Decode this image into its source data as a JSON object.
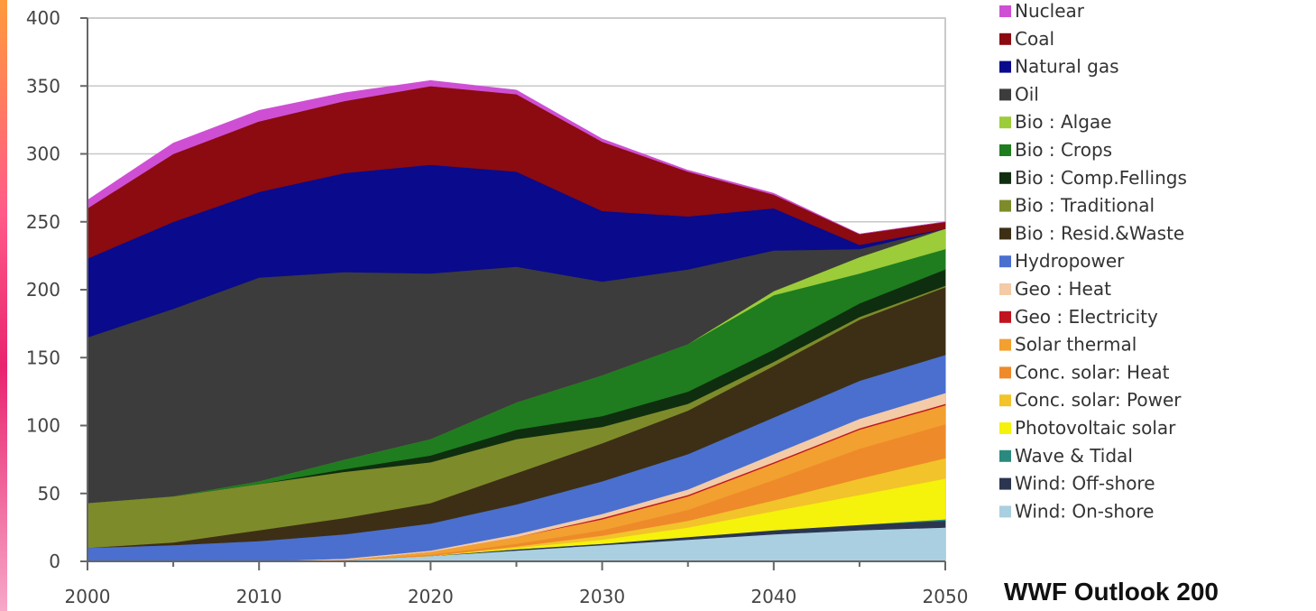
{
  "source_note": "WWF Outlook 200",
  "chart_data": {
    "type": "area",
    "stacked": true,
    "x": [
      2000,
      2005,
      2010,
      2015,
      2020,
      2025,
      2030,
      2035,
      2040,
      2045,
      2050
    ],
    "xlim": [
      2000,
      2050
    ],
    "ylim": [
      0,
      400
    ],
    "x_ticks": [
      "2000",
      "2010",
      "2020",
      "2030",
      "2040",
      "2050"
    ],
    "y_ticks": [
      "0",
      "50",
      "100",
      "150",
      "200",
      "250",
      "300",
      "350",
      "400"
    ],
    "grid": true,
    "legend_position": "right",
    "series": [
      {
        "name": "Wind: On-shore",
        "color": "#a9cfe0",
        "values": [
          0,
          0,
          0,
          1,
          4,
          8,
          12,
          16,
          20,
          23,
          25
        ]
      },
      {
        "name": "Wind: Off-shore",
        "color": "#2b3550",
        "values": [
          0,
          0,
          0,
          0,
          0,
          1,
          1,
          2,
          3,
          4,
          5
        ]
      },
      {
        "name": "Wave & Tidal",
        "color": "#2a8a7e",
        "values": [
          0,
          0,
          0,
          0,
          0,
          0,
          0,
          0,
          0,
          0,
          1
        ]
      },
      {
        "name": "Photovoltaic solar",
        "color": "#f5f20c",
        "values": [
          0,
          0,
          0,
          0,
          0,
          1,
          3,
          7,
          14,
          22,
          30
        ]
      },
      {
        "name": "Conc. solar: Power",
        "color": "#f2c32a",
        "values": [
          0,
          0,
          0,
          0,
          0,
          1,
          3,
          5,
          8,
          12,
          15
        ]
      },
      {
        "name": "Conc. solar: Heat",
        "color": "#ee8a2a",
        "values": [
          0,
          0,
          0,
          0,
          1,
          2,
          4,
          8,
          15,
          22,
          25
        ]
      },
      {
        "name": "Solar thermal",
        "color": "#f2a030",
        "values": [
          0,
          0,
          0,
          0,
          2,
          5,
          8,
          10,
          12,
          14,
          14
        ]
      },
      {
        "name": "Geo : Electricity",
        "color": "#c0141e",
        "values": [
          0,
          0,
          0,
          0,
          0,
          0,
          1,
          1,
          1,
          1,
          1
        ]
      },
      {
        "name": "Geo : Heat",
        "color": "#f3cba6",
        "values": [
          0,
          0,
          0,
          1,
          1,
          2,
          3,
          4,
          6,
          7,
          8
        ]
      },
      {
        "name": "Hydropower",
        "color": "#4a6fcf",
        "values": [
          10,
          12,
          15,
          18,
          20,
          22,
          24,
          26,
          27,
          28,
          28
        ]
      },
      {
        "name": "Bio : Resid.&Waste",
        "color": "#3d2f15",
        "values": [
          0,
          2,
          8,
          12,
          15,
          23,
          28,
          32,
          38,
          45,
          50
        ]
      },
      {
        "name": "Bio : Traditional",
        "color": "#7e8b2b",
        "values": [
          33,
          34,
          34,
          34,
          30,
          25,
          12,
          5,
          3,
          2,
          1
        ]
      },
      {
        "name": "Bio : Comp.Fellings",
        "color": "#0f2e0f",
        "values": [
          0,
          0,
          0,
          2,
          5,
          7,
          8,
          9,
          9,
          10,
          12
        ]
      },
      {
        "name": "Bio : Crops",
        "color": "#1f7d1f",
        "values": [
          0,
          0,
          2,
          7,
          12,
          20,
          30,
          35,
          40,
          22,
          15
        ]
      },
      {
        "name": "Bio : Algae",
        "color": "#9ccc3a",
        "values": [
          0,
          0,
          0,
          0,
          0,
          0,
          0,
          0,
          3,
          12,
          15
        ]
      },
      {
        "name": "Oil",
        "color": "#3c3c3c",
        "values": [
          122,
          138,
          150,
          138,
          122,
          100,
          69,
          55,
          30,
          6,
          0
        ]
      },
      {
        "name": "Natural gas",
        "color": "#0a0a8c",
        "values": [
          58,
          64,
          63,
          73,
          80,
          70,
          52,
          39,
          31,
          3,
          0
        ]
      },
      {
        "name": "Coal",
        "color": "#8b0b10",
        "values": [
          37,
          50,
          52,
          53,
          58,
          57,
          51,
          33,
          10,
          8,
          5
        ]
      },
      {
        "name": "Nuclear",
        "color": "#cf4fd4",
        "values": [
          6,
          8,
          8,
          6,
          4,
          3,
          2,
          1,
          1,
          0,
          0
        ]
      }
    ]
  }
}
